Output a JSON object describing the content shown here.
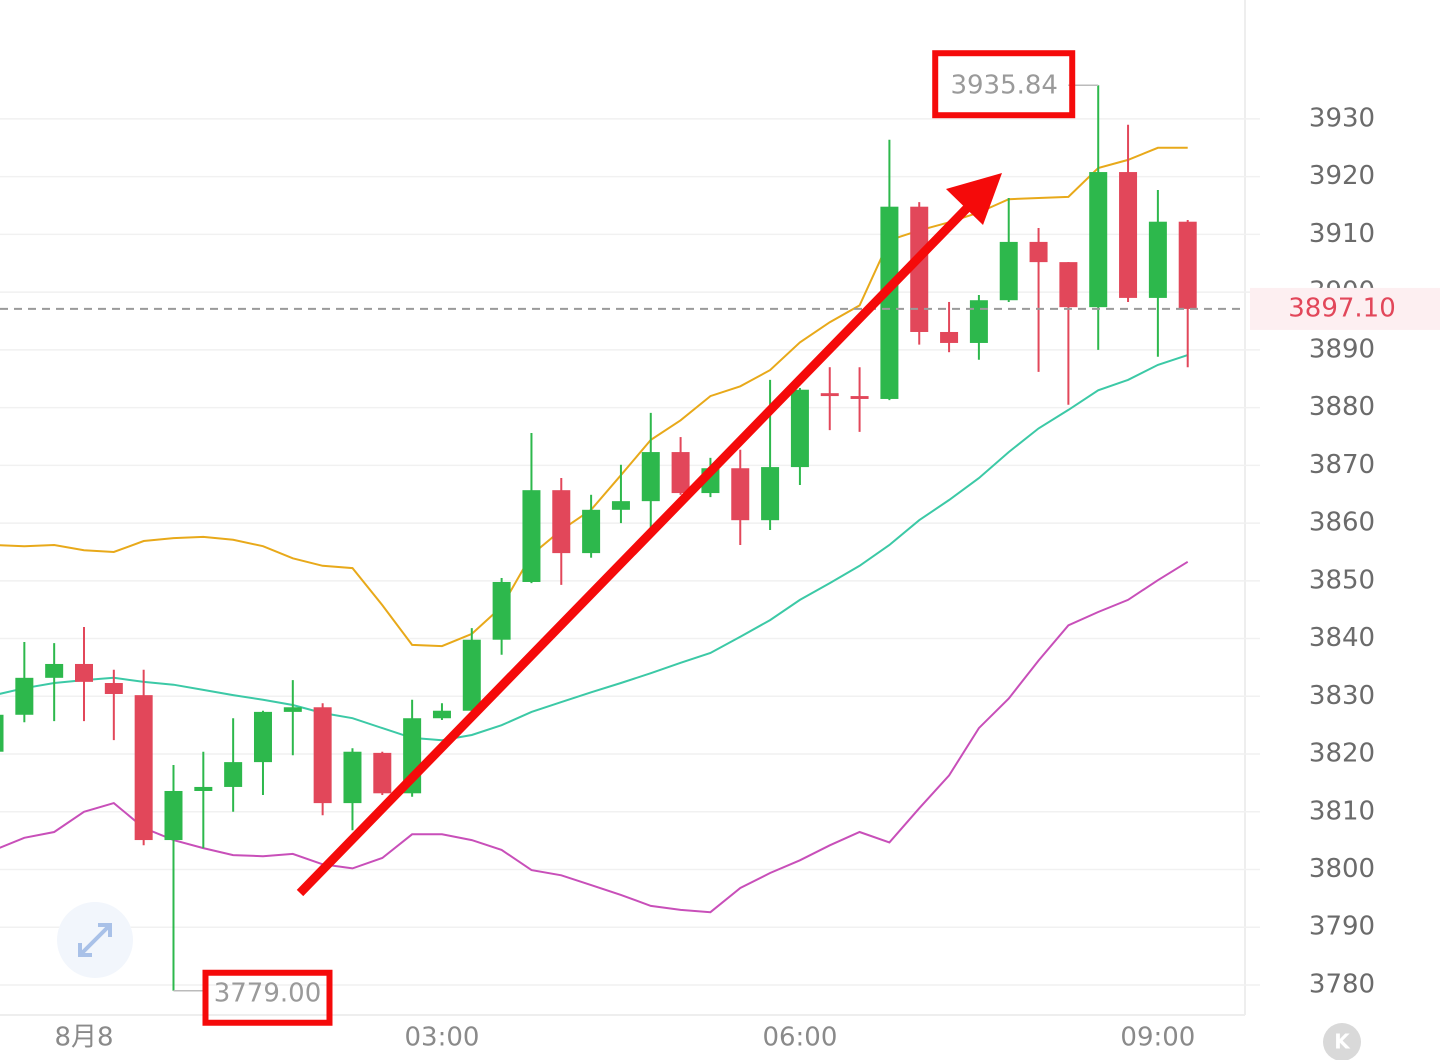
{
  "chart_data": {
    "type": "candlestick",
    "categories": [
      null,
      null,
      null,
      "8月8",
      null,
      null,
      null,
      null,
      null,
      null,
      null,
      null,
      null,
      null,
      null,
      "03:00",
      null,
      null,
      null,
      null,
      null,
      null,
      null,
      null,
      null,
      null,
      null,
      "06:00",
      null,
      null,
      null,
      null,
      null,
      null,
      null,
      null,
      null,
      null,
      null,
      "09:00",
      null
    ],
    "open": [
      3820.4,
      3826.8,
      3833.2,
      3835.6,
      3832.3,
      3830.2,
      3805.1,
      3813.6,
      3814.3,
      3818.6,
      3827.3,
      3828.1,
      3811.5,
      3820.2,
      3813.2,
      3826.2,
      3827.5,
      3839.8,
      3849.8,
      3865.7,
      3854.8,
      3862.3,
      3863.8,
      3872.3,
      3865.2,
      3869.5,
      3860.5,
      3869.7,
      3882.5,
      3882.0,
      3881.5,
      3914.8,
      3893.1,
      3891.2,
      3898.6,
      3908.7,
      3905.2,
      3897.4,
      3920.8,
      3899.0,
      3912.2
    ],
    "high": [
      3827.0,
      3839.4,
      3839.2,
      3842.0,
      3834.6,
      3834.6,
      3818.1,
      3820.4,
      3826.2,
      3827.5,
      3832.8,
      3828.8,
      3821.0,
      3820.4,
      3829.4,
      3828.8,
      3841.8,
      3850.5,
      3875.6,
      3867.8,
      3864.9,
      3870.1,
      3879.1,
      3874.9,
      3871.3,
      3872.7,
      3884.8,
      3883.4,
      3887.0,
      3887.0,
      3926.4,
      3915.6,
      3898.3,
      3899.5,
      3916.3,
      3911.1,
      3905.2,
      3935.84,
      3929.0,
      3917.7,
      3912.5
    ],
    "low": [
      3820.0,
      3825.5,
      3825.7,
      3825.7,
      3822.4,
      3804.2,
      3779.0,
      3803.7,
      3810.0,
      3812.9,
      3819.8,
      3809.4,
      3806.8,
      3812.9,
      3812.6,
      3825.9,
      3827.3,
      3837.2,
      3849.6,
      3849.3,
      3854.0,
      3860.0,
      3859.2,
      3864.9,
      3864.5,
      3856.2,
      3858.8,
      3866.6,
      3876.1,
      3875.8,
      3881.3,
      3890.9,
      3889.6,
      3888.3,
      3898.3,
      3886.2,
      3880.5,
      3890.0,
      3898.3,
      3888.8,
      3887.0
    ],
    "close": [
      3826.8,
      3833.2,
      3835.6,
      3832.5,
      3830.4,
      3805.1,
      3813.6,
      3814.3,
      3818.6,
      3827.3,
      3828.1,
      3811.5,
      3820.4,
      3813.2,
      3826.2,
      3827.5,
      3839.8,
      3849.8,
      3865.7,
      3854.8,
      3862.3,
      3863.8,
      3872.3,
      3865.2,
      3869.5,
      3860.5,
      3869.7,
      3883.1,
      3882.0,
      3881.5,
      3914.8,
      3893.1,
      3891.2,
      3898.6,
      3908.7,
      3905.2,
      3897.4,
      3920.8,
      3899.0,
      3912.2,
      3897.1
    ],
    "up_color": "#2db84c",
    "down_color": "#e2475a",
    "series": [
      {
        "color": "#e8a91a",
        "values": [
          3856.2,
          3856.0,
          3856.2,
          3855.3,
          3855.0,
          3856.9,
          3857.4,
          3857.6,
          3857.1,
          3856.0,
          3853.9,
          3852.6,
          3852.2,
          3845.8,
          3838.9,
          3838.7,
          3840.8,
          3845.5,
          3854.5,
          3858.8,
          3862.3,
          3868.3,
          3874.4,
          3877.8,
          3882.0,
          3883.7,
          3886.5,
          3891.3,
          3894.8,
          3897.7,
          3909.0,
          3910.7,
          3912.1,
          3913.8,
          3916.1,
          3916.3,
          3916.5,
          3921.5,
          3922.9,
          3925.0,
          3925.0
        ]
      },
      {
        "color": "#3cc9a6",
        "values": [
          3830.2,
          3831.4,
          3832.3,
          3832.8,
          3833.2,
          3832.5,
          3832.0,
          3831.1,
          3830.2,
          3829.4,
          3828.5,
          3827.1,
          3826.2,
          3824.5,
          3822.8,
          3822.4,
          3823.3,
          3825.0,
          3827.3,
          3829.0,
          3830.7,
          3832.3,
          3834.0,
          3835.8,
          3837.5,
          3840.3,
          3843.2,
          3846.7,
          3849.6,
          3852.6,
          3856.2,
          3860.5,
          3864.0,
          3867.8,
          3872.3,
          3876.4,
          3879.6,
          3883.0,
          3884.8,
          3887.4,
          3889.1
        ]
      },
      {
        "color": "#c84fb9",
        "values": [
          3803.4,
          3805.5,
          3806.5,
          3810.0,
          3811.5,
          3807.2,
          3805.1,
          3803.7,
          3802.5,
          3802.3,
          3802.7,
          3800.9,
          3800.2,
          3802.0,
          3806.1,
          3806.1,
          3805.1,
          3803.4,
          3799.9,
          3799.0,
          3797.3,
          3795.6,
          3793.7,
          3793.0,
          3792.6,
          3796.8,
          3799.4,
          3801.6,
          3804.2,
          3806.5,
          3804.7,
          3810.6,
          3816.3,
          3824.5,
          3829.6,
          3836.2,
          3842.3,
          3844.6,
          3846.7,
          3850.1,
          3853.3
        ]
      }
    ],
    "ylim": [
      3774.8,
      3950.6
    ],
    "yticks": [
      3780,
      3790,
      3800,
      3810,
      3820,
      3830,
      3840,
      3850,
      3860,
      3870,
      3880,
      3890,
      3900,
      3910,
      3920,
      3930
    ],
    "grid": true,
    "high_label": {
      "index": 37,
      "value": 3935.84,
      "label": "3935.84"
    },
    "low_label": {
      "index": 6,
      "value": 3779.0,
      "label": "3779.00"
    },
    "last_price": {
      "value": 3897.1,
      "label": "3897.10"
    },
    "button_label": "K"
  }
}
